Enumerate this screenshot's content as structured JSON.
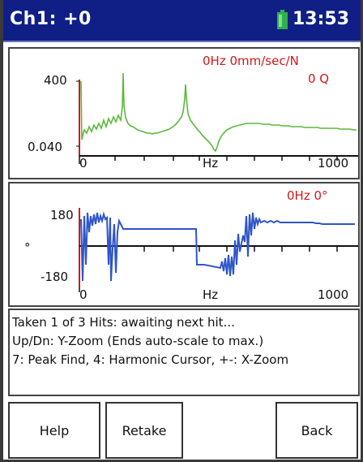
{
  "header": {
    "title": "Ch1: +0",
    "time": "13:53",
    "battery_icon": "battery-icon",
    "battery_color": "#2fb04a"
  },
  "spectrum": {
    "readout_top": "0Hz  0mm/sec/N",
    "readout_q": "0 Q",
    "y_top": "400",
    "y_bottom": "0.040",
    "x_left": "0",
    "x_mid": "Hz",
    "x_right": "1000",
    "trace_color": "#5cb83a"
  },
  "phase": {
    "readout": "0Hz  0°",
    "y_top": "180",
    "y_mid": "°",
    "y_bottom": "-180",
    "x_left": "0",
    "x_mid": "Hz",
    "x_right": "1000",
    "trace_color": "#2f55c8"
  },
  "messages": [
    "Taken 1 of 3 Hits: awaiting next hit...",
    "Up/Dn: Y-Zoom (Ends auto-scale to max.)",
    "7: Peak Find, 4: Harmonic Cursor, +-: X-Zoom"
  ],
  "buttons": {
    "help": "Help",
    "retake": "Retake",
    "back": "Back"
  }
}
